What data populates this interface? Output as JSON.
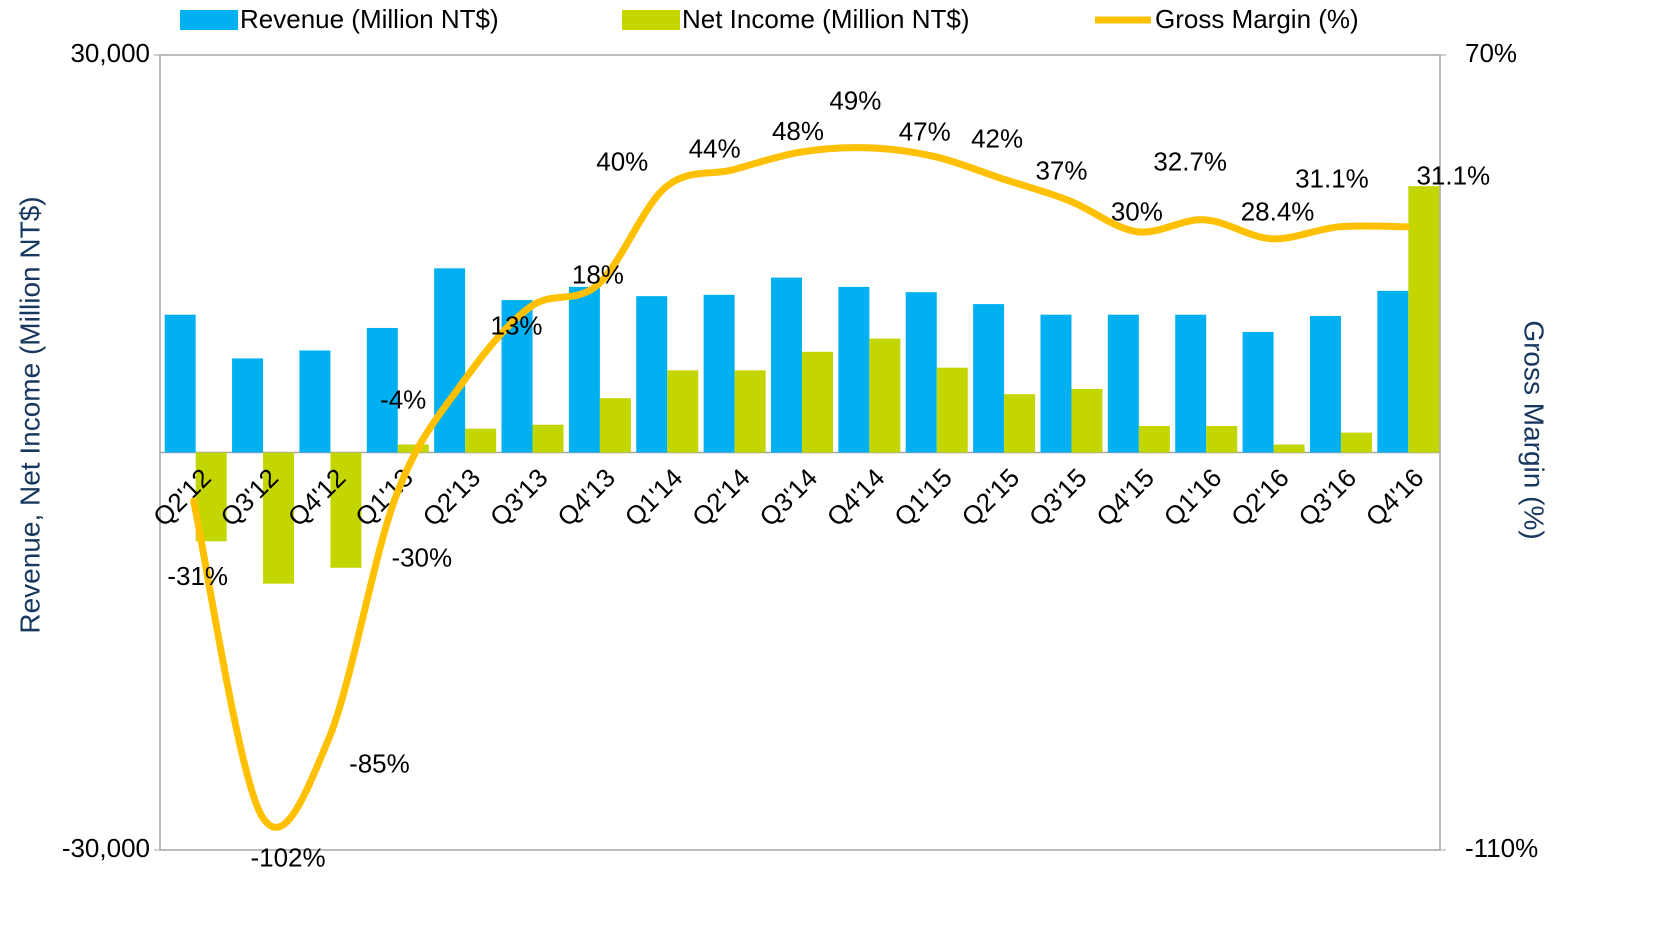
{
  "chart_data": {
    "type": "bar",
    "categories": [
      "Q2'12",
      "Q3'12",
      "Q4'12",
      "Q1'13",
      "Q2'13",
      "Q3'13",
      "Q4'13",
      "Q1'14",
      "Q2'14",
      "Q3'14",
      "Q4'14",
      "Q1'15",
      "Q2'15",
      "Q3'15",
      "Q4'15",
      "Q1'16",
      "Q2'16",
      "Q3'16",
      "Q4'16"
    ],
    "y_axis_label": "Revenue, Net Income (Million NT$)",
    "y2_axis_label": "Gross Margin (%)",
    "ylim": [
      -30000,
      30000
    ],
    "yticks": [
      {
        "value": -30000,
        "label": "-30,000"
      },
      {
        "value": 30000,
        "label": "30,000"
      }
    ],
    "y2lim": [
      -110,
      70
    ],
    "y2ticks": [
      {
        "value": -110,
        "label": "-110%"
      },
      {
        "value": 70,
        "label": "70%"
      }
    ],
    "legend": "top",
    "series": [
      {
        "name": "Revenue (Million NT$)",
        "type": "bar",
        "color": "#00b0f0",
        "values": [
          10400,
          7100,
          7700,
          9400,
          13900,
          11500,
          12500,
          11800,
          11900,
          13200,
          12500,
          12100,
          11200,
          10400,
          10400,
          10400,
          9100,
          10300,
          12200
        ]
      },
      {
        "name": "Net Income (Million NT$)",
        "type": "bar",
        "color": "#c4d600",
        "values": [
          -6700,
          -9900,
          -8700,
          600,
          1800,
          2100,
          4100,
          6200,
          6200,
          7600,
          8600,
          6400,
          4400,
          4800,
          2000,
          2000,
          600,
          1500,
          20100
        ]
      },
      {
        "name": "Gross Margin (%)",
        "type": "line",
        "axis": "y2",
        "color": "#ffc000",
        "values": [
          -31,
          -102,
          -85,
          -30,
          -4,
          13,
          18,
          40,
          44,
          48,
          49,
          47,
          42,
          37,
          30,
          32.7,
          28.4,
          31.1,
          31.1
        ],
        "value_labels": [
          "-31%",
          "-102%",
          "-85%",
          "-30%",
          "-4%",
          "13%",
          "18%",
          "40%",
          "44%",
          "48%",
          "49%",
          "47%",
          "42%",
          "37%",
          "30%",
          "32.7%",
          "28.4%",
          "31.1%",
          "31.1%"
        ]
      }
    ]
  }
}
